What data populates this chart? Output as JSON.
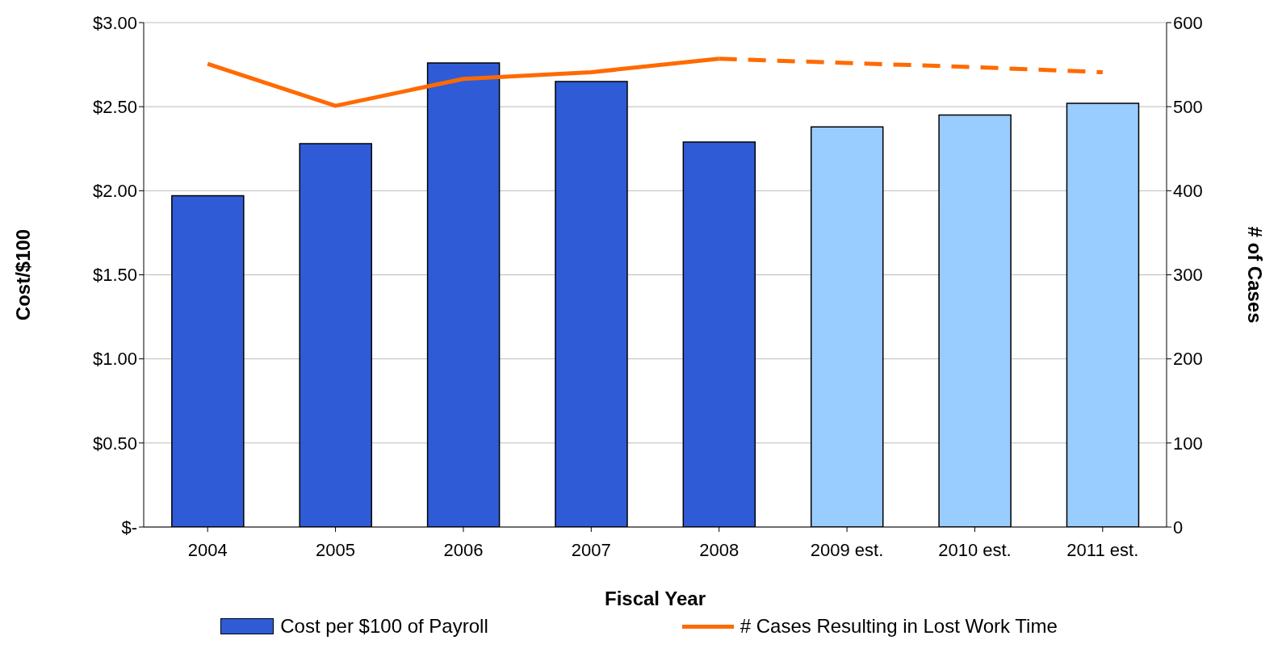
{
  "chart_data": {
    "type": "bar",
    "xlabel": "Fiscal Year",
    "ylabel": "Cost/$100",
    "y2label": "# of Cases",
    "categories": [
      "2004",
      "2005",
      "2006",
      "2007",
      "2008",
      "2009 est.",
      "2010 est.",
      "2011 est."
    ],
    "series": [
      {
        "name": "Cost per $100 of Payroll",
        "colors": [
          "#2f5bd6",
          "#2f5bd6",
          "#2f5bd6",
          "#2f5bd6",
          "#2f5bd6",
          "#99ccff",
          "#99ccff",
          "#99ccff"
        ],
        "color": "#2f5bd6",
        "values": [
          1.97,
          2.28,
          2.76,
          2.65,
          2.29,
          2.38,
          2.45,
          2.52
        ]
      },
      {
        "name": "# Cases Resulting in Lost Work Time",
        "type": "line",
        "axis": "y2",
        "color": "#ff6a00",
        "line_style": "solid",
        "values": [
          551,
          501,
          533,
          541,
          557,
          null,
          null,
          null
        ]
      },
      {
        "type": "line",
        "axis": "y2",
        "color": "#ff6a00",
        "line_style": "dashed",
        "values": [
          null,
          null,
          null,
          null,
          557,
          552,
          547,
          541
        ]
      }
    ],
    "ylim": [
      0,
      3
    ],
    "yticks": [
      {
        "value": 0,
        "label": "$-"
      },
      {
        "value": 0.5,
        "label": "$0.50"
      },
      {
        "value": 1,
        "label": "$1.00"
      },
      {
        "value": 1.5,
        "label": "$1.50"
      },
      {
        "value": 2,
        "label": "$2.00"
      },
      {
        "value": 2.5,
        "label": "$2.50"
      },
      {
        "value": 3,
        "label": "$3.00"
      }
    ],
    "y2lim": [
      0,
      600
    ],
    "y2ticks": [
      0,
      100,
      200,
      300,
      400,
      500,
      600
    ],
    "grid": "y",
    "legend": "bottom",
    "marker": "none"
  }
}
